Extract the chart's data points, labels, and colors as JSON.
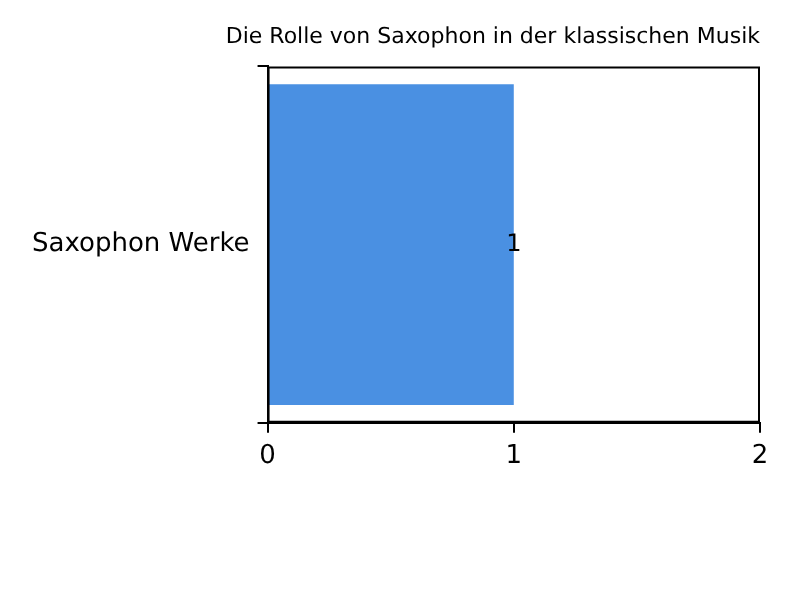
{
  "chart_data": {
    "type": "bar",
    "title": "Die Rolle von Saxophon in der klassischen Musik",
    "orientation": "horizontal",
    "categories": [
      "Saxophon Werke"
    ],
    "values": [
      1
    ],
    "color": "#4a90e2",
    "xlim": [
      0,
      2
    ],
    "xticks": [
      0,
      1,
      2
    ],
    "data_labels": true,
    "grid": false,
    "legend": false
  }
}
